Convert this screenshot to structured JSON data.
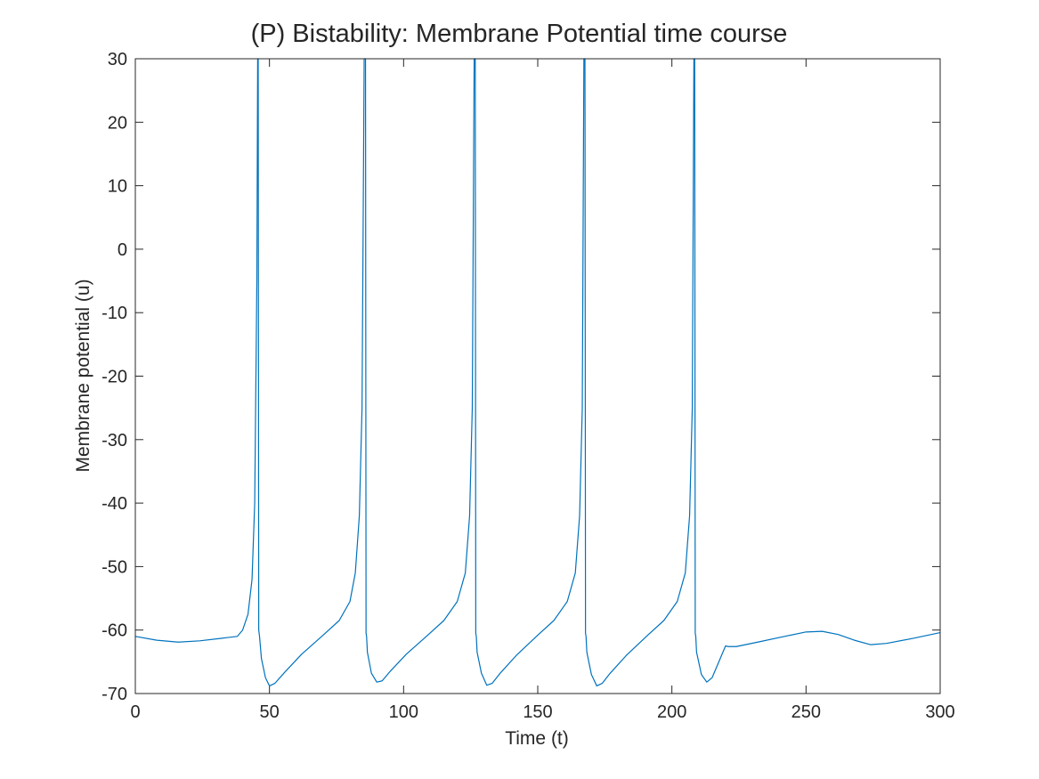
{
  "chart_data": {
    "type": "line",
    "title": "(P) Bistability: Membrane Potential time course",
    "xlabel": "Time (t)",
    "ylabel": "Membrane potential (u)",
    "xlim": [
      0,
      300
    ],
    "ylim": [
      -70,
      30
    ],
    "xticks": [
      0,
      50,
      100,
      150,
      200,
      250,
      300
    ],
    "yticks": [
      30,
      20,
      10,
      0,
      -10,
      -20,
      -30,
      -40,
      -50,
      -60,
      -70
    ],
    "grid": false,
    "line_color": "#0072BD",
    "series": [
      {
        "x": [
          0,
          8,
          16,
          24,
          32,
          38,
          40,
          42,
          43.5,
          44.5,
          45.3,
          45.6,
          45.8,
          46,
          46.3,
          47,
          48.5,
          50,
          52,
          56,
          62,
          70,
          76,
          80,
          82,
          83.5,
          84.5,
          85.3,
          85.8,
          86,
          86.2,
          86.5,
          88,
          90,
          92,
          95,
          101,
          109,
          115,
          120,
          123,
          124.6,
          125.6,
          126.3,
          126.7,
          126.9,
          127.1,
          127.4,
          129,
          131,
          133,
          136,
          142,
          150,
          156,
          161,
          164,
          165.6,
          166.6,
          167.2,
          167.6,
          167.8,
          168,
          168.3,
          170,
          172,
          174,
          177,
          183,
          191,
          197,
          202,
          205,
          206.6,
          207.6,
          208.2,
          208.5,
          208.7,
          208.9,
          209.2,
          211,
          213,
          215,
          217.5,
          220,
          221,
          224,
          232,
          242,
          250,
          256,
          262,
          268,
          274,
          280,
          290,
          300
        ],
        "y": [
          -61,
          -61.6,
          -61.9,
          -61.7,
          -61.3,
          -61,
          -60,
          -57.5,
          -52,
          -40,
          -5,
          30,
          30,
          -60,
          -61,
          -64.5,
          -67.5,
          -68.8,
          -68.4,
          -66.5,
          -63.8,
          -60.8,
          -58.5,
          -55.5,
          -51,
          -42,
          -25,
          30,
          30,
          -60.5,
          -61,
          -63.5,
          -66.8,
          -68.2,
          -68,
          -66.5,
          -63.8,
          -60.8,
          -58.5,
          -55.5,
          -51,
          -42,
          -25,
          30,
          30,
          -60.5,
          -61,
          -63.5,
          -66.8,
          -68.7,
          -68.4,
          -66.8,
          -64,
          -60.8,
          -58.5,
          -55.5,
          -51,
          -42,
          -25,
          30,
          30,
          -60.5,
          -61,
          -63.5,
          -67,
          -68.8,
          -68.4,
          -66.8,
          -64,
          -60.8,
          -58.5,
          -55.5,
          -51,
          -42,
          -25,
          30,
          30,
          -60.5,
          -61,
          -63.5,
          -67,
          -68.2,
          -67.5,
          -65,
          -62.5,
          -62.6,
          -62.6,
          -61.9,
          -61,
          -60.3,
          -60.2,
          -60.7,
          -61.6,
          -62.3,
          -62.1,
          -61.3,
          -60.4
        ]
      }
    ]
  }
}
